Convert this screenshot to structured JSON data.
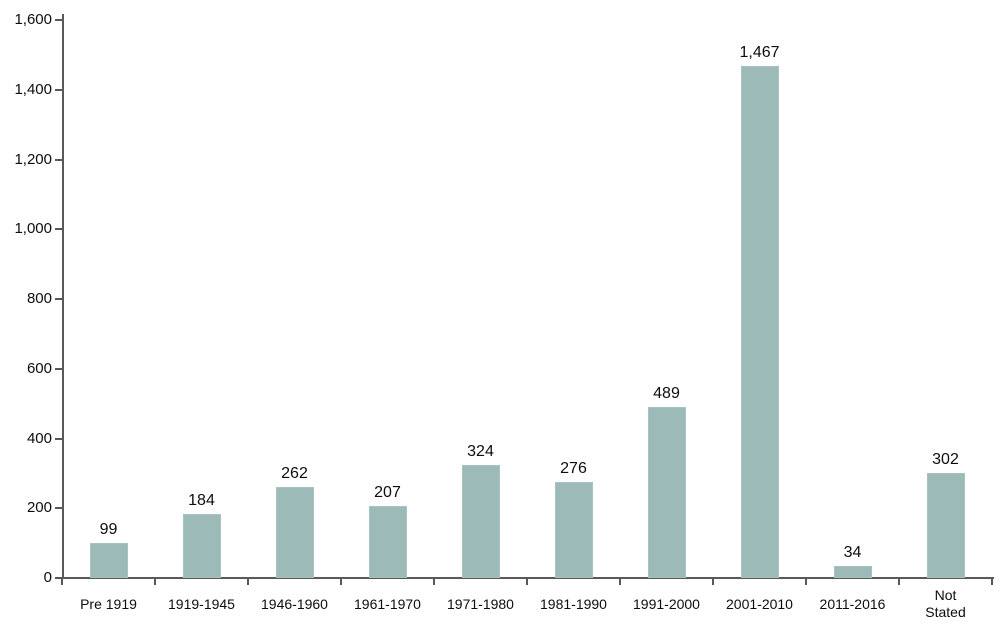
{
  "chart_data": {
    "type": "bar",
    "title": "",
    "xlabel": "",
    "ylabel": "",
    "categories": [
      "Pre 1919",
      "1919-1945",
      "1946-1960",
      "1961-1970",
      "1971-1980",
      "1981-1990",
      "1991-2000",
      "2001-2010",
      "2011-2016",
      "Not\nStated"
    ],
    "values": [
      99,
      184,
      262,
      207,
      324,
      276,
      489,
      1467,
      34,
      302
    ],
    "value_labels": [
      "99",
      "184",
      "262",
      "207",
      "324",
      "276",
      "489",
      "1,467",
      "34",
      "302"
    ],
    "ylim": [
      0,
      1600
    ],
    "y_tick_values": [
      0,
      200,
      400,
      600,
      800,
      1000,
      1200,
      1400,
      1600
    ],
    "y_tick_labels": [
      "0",
      "200",
      "400",
      "600",
      "800",
      "1,000",
      "1,200",
      "1,400",
      "1,600"
    ],
    "grid": false,
    "legend": false,
    "colors": {
      "bar_fill": "#9cbab8",
      "bar_border": "#a9c2c0",
      "axis": "#595959",
      "text": "#0d0d0d",
      "background": "#ffffff"
    }
  }
}
